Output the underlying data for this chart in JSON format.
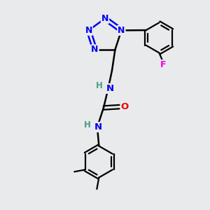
{
  "bg_color": "#e8eaeb",
  "atom_colors": {
    "N": "#0000ee",
    "O": "#ee0000",
    "F": "#ee00ee",
    "C": "#000000",
    "H_label": "#4a9a8a"
  },
  "bond_color": "#000000",
  "title": ""
}
